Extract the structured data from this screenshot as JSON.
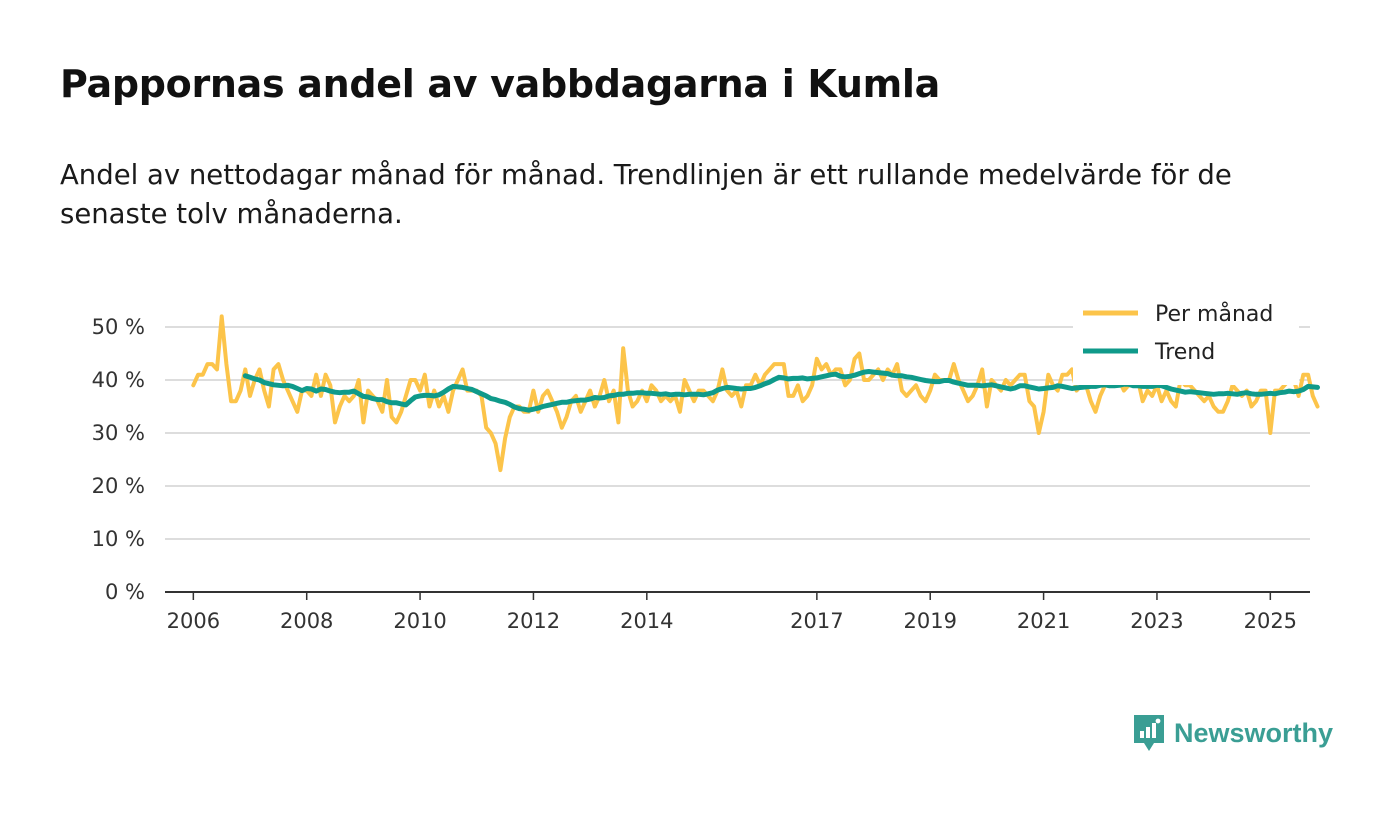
{
  "title": "Pappornas andel av vabbdagarna i Kumla",
  "subtitle": "Andel av nettodagar månad för månad. Trendlinjen är ett rullande medelvärde för de senaste tolv månaderna.",
  "brand": {
    "name": "Newsworthy",
    "icon": "newsworthy-logo-icon"
  },
  "colors": {
    "per_month": "#fcc44a",
    "trend": "#0f9a8a",
    "grid": "#dddddd",
    "axis": "#333333"
  },
  "chart_data": {
    "type": "line",
    "title": "Pappornas andel av vabbdagarna i Kumla",
    "xlabel": "",
    "ylabel": "",
    "xlim": [
      2005.5,
      2025.7
    ],
    "ylim": [
      0,
      50
    ],
    "x_ticks": [
      2006,
      2008,
      2010,
      2012,
      2014,
      2017,
      2019,
      2021,
      2023,
      2025
    ],
    "x_tick_labels": [
      "2006",
      "2008",
      "2010",
      "2012",
      "2014",
      "2017",
      "2019",
      "2021",
      "2023",
      "2025"
    ],
    "y_ticks": [
      0,
      10,
      20,
      30,
      40,
      50
    ],
    "y_tick_labels": [
      "0 %",
      "10 %",
      "20 %",
      "30 %",
      "40 %",
      "50 %"
    ],
    "legend_position": "top-right",
    "series": [
      {
        "name": "Per månad",
        "color": "#fcc44a",
        "x_start": 2006.0,
        "step_years": 0.08333,
        "values": [
          39,
          41,
          41,
          43,
          43,
          42,
          52,
          43,
          36,
          36,
          38,
          42,
          37,
          40,
          42,
          38,
          35,
          42,
          43,
          40,
          38,
          36,
          34,
          38,
          38,
          37,
          41,
          37,
          41,
          39,
          32,
          35,
          37,
          36,
          37,
          40,
          32,
          38,
          37,
          36,
          34,
          40,
          33,
          32,
          34,
          37,
          40,
          40,
          38,
          41,
          35,
          38,
          35,
          37,
          34,
          38,
          40,
          42,
          38,
          38,
          38,
          37,
          31,
          30,
          28,
          23,
          29,
          33,
          35,
          35,
          34,
          34,
          38,
          34,
          37,
          38,
          36,
          34,
          31,
          33,
          36,
          37,
          34,
          36,
          38,
          35,
          37,
          40,
          36,
          38,
          32,
          46,
          38,
          35,
          36,
          38,
          36,
          39,
          38,
          36,
          37,
          36,
          37,
          34,
          40,
          38,
          36,
          38,
          38,
          37,
          36,
          38,
          42,
          38,
          37,
          38,
          35,
          39,
          39,
          41,
          39,
          41,
          42,
          43,
          43,
          43,
          37,
          37,
          39,
          36,
          37,
          39,
          44,
          42,
          43,
          41,
          42,
          42,
          39,
          40,
          44,
          45,
          40,
          40,
          41,
          42,
          40,
          42,
          41,
          43,
          38,
          37,
          38,
          39,
          37,
          36,
          38,
          41,
          40,
          40,
          40,
          43,
          40,
          38,
          36,
          37,
          39,
          42,
          35,
          40,
          39,
          38,
          40,
          39,
          40,
          41,
          41,
          36,
          35,
          30,
          34,
          41,
          39,
          38,
          41,
          41,
          42,
          38,
          39,
          39,
          36,
          34,
          37,
          39,
          39,
          40,
          40,
          38,
          39,
          40,
          40,
          36,
          38,
          37,
          39,
          36,
          38,
          36,
          35,
          40,
          39,
          39,
          38,
          37,
          36,
          37,
          35,
          34,
          34,
          36,
          39,
          38,
          37,
          38,
          35,
          36,
          38,
          38,
          30,
          38,
          38,
          39,
          40,
          40,
          37,
          41,
          41,
          37,
          35
        ]
      },
      {
        "name": "Trend",
        "color": "#0f9a8a",
        "x_start": 2006.9167,
        "step_years": 0.08333,
        "values": [
          40.8,
          40.5,
          40.2,
          40.0,
          39.5,
          39.3,
          39.1,
          39.0,
          38.9,
          39.0,
          38.8,
          38.4,
          38.0,
          38.4,
          38.3,
          37.9,
          38.3,
          38.2,
          37.9,
          37.7,
          37.6,
          37.7,
          37.7,
          37.9,
          37.4,
          36.9,
          36.8,
          36.5,
          36.3,
          36.3,
          35.9,
          35.7,
          35.7,
          35.5,
          35.3,
          36.1,
          36.8,
          37.0,
          37.1,
          37.1,
          37.0,
          37.2,
          37.7,
          38.3,
          38.8,
          38.7,
          38.6,
          38.4,
          38.2,
          37.8,
          37.4,
          37.0,
          36.5,
          36.3,
          36.0,
          35.8,
          35.4,
          34.9,
          34.6,
          34.5,
          34.3,
          34.5,
          34.7,
          35.0,
          35.2,
          35.4,
          35.6,
          35.8,
          35.8,
          36.0,
          36.1,
          36.2,
          36.2,
          36.4,
          36.7,
          36.6,
          36.7,
          37.0,
          37.1,
          37.3,
          37.3,
          37.5,
          37.5,
          37.6,
          37.6,
          37.5,
          37.5,
          37.4,
          37.3,
          37.4,
          37.2,
          37.3,
          37.3,
          37.2,
          37.3,
          37.3,
          37.3,
          37.2,
          37.4,
          37.6,
          38.1,
          38.4,
          38.6,
          38.5,
          38.4,
          38.3,
          38.4,
          38.4,
          38.6,
          38.9,
          39.3,
          39.6,
          40.1,
          40.5,
          40.4,
          40.2,
          40.3,
          40.3,
          40.4,
          40.2,
          40.3,
          40.4,
          40.6,
          40.8,
          41.0,
          41.1,
          40.7,
          40.6,
          40.7,
          40.9,
          41.2,
          41.5,
          41.6,
          41.5,
          41.4,
          41.3,
          41.2,
          40.9,
          40.8,
          40.8,
          40.6,
          40.5,
          40.3,
          40.1,
          39.9,
          39.8,
          39.7,
          39.7,
          39.9,
          39.9,
          39.6,
          39.4,
          39.2,
          39.0,
          39.0,
          39.0,
          38.9,
          39.0,
          39.1,
          38.9,
          38.7,
          38.5,
          38.3,
          38.5,
          38.9,
          38.9,
          38.7,
          38.5,
          38.3,
          38.4,
          38.5,
          38.6,
          38.9,
          38.8,
          38.6,
          38.4,
          38.5,
          38.6,
          38.7,
          38.8,
          38.8,
          39.0,
          39.1,
          38.9,
          38.9,
          39.0,
          39.2,
          39.2,
          38.9,
          38.9,
          38.8,
          38.8,
          38.8,
          39.0,
          38.9,
          38.6,
          38.3,
          38.1,
          37.9,
          37.7,
          37.8,
          37.7,
          37.6,
          37.5,
          37.4,
          37.3,
          37.4,
          37.4,
          37.5,
          37.4,
          37.3,
          37.5,
          37.6,
          37.4,
          37.3,
          37.3,
          37.4,
          37.5,
          37.4,
          37.6,
          37.7,
          37.9,
          37.8,
          37.9,
          38.2,
          38.8,
          38.7,
          38.6
        ]
      }
    ]
  }
}
